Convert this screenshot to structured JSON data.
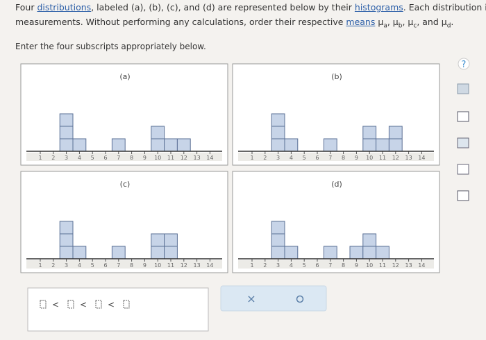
{
  "question": {
    "line1": [
      {
        "text": "Four "
      },
      {
        "text": "distributions",
        "style": "link"
      },
      {
        "text": ", labeled (a), (b), (c), and (d) are represented below by their "
      },
      {
        "text": "histograms",
        "style": "link"
      },
      {
        "text": ". Each distribution is"
      }
    ],
    "line2": [
      {
        "text": "measurements. Without performing any calculations, order their respective "
      },
      {
        "text": "means",
        "style": "link"
      },
      {
        "text": " μ"
      },
      {
        "text": "a",
        "style": "sub"
      },
      {
        "text": ", μ"
      },
      {
        "text": "b",
        "style": "sub"
      },
      {
        "text": ", μ"
      },
      {
        "text": "c",
        "style": "sub"
      },
      {
        "text": ", and μ"
      },
      {
        "text": "d",
        "style": "sub"
      },
      {
        "text": "."
      }
    ],
    "instruction": "Enter the four subscripts appropriately below."
  },
  "histograms": {
    "x_ticks": [
      1,
      2,
      3,
      4,
      5,
      6,
      7,
      8,
      9,
      10,
      11,
      12,
      13,
      14
    ],
    "panels": [
      {
        "label": "(a)",
        "counts": [
          0,
          0,
          3,
          1,
          0,
          0,
          1,
          0,
          0,
          2,
          1,
          1,
          0,
          0
        ]
      },
      {
        "label": "(b)",
        "counts": [
          0,
          0,
          3,
          1,
          0,
          0,
          1,
          0,
          0,
          2,
          1,
          2,
          0,
          0
        ]
      },
      {
        "label": "(c)",
        "counts": [
          0,
          0,
          3,
          1,
          0,
          0,
          1,
          0,
          0,
          2,
          2,
          0,
          0,
          0
        ]
      },
      {
        "label": "(d)",
        "counts": [
          0,
          0,
          3,
          1,
          0,
          0,
          1,
          0,
          1,
          2,
          1,
          0,
          0,
          0
        ]
      }
    ]
  },
  "answer": {
    "separators": [
      "<",
      "<",
      "<"
    ]
  },
  "sidebar": {
    "help": "?"
  }
}
